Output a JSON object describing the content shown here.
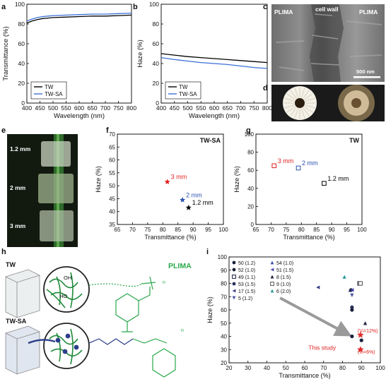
{
  "colors": {
    "tw": "#000000",
    "twsa": "#3a6fd8",
    "red": "#e02020",
    "blue": "#2a4fb0",
    "plima": "#2aa84a",
    "study_star": "#e03030"
  },
  "chart_data": [
    {
      "panel": "a",
      "type": "line",
      "xlabel": "Wavelength (nm)",
      "ylabel": "Transmittance (%)",
      "xlim": [
        400,
        800
      ],
      "ylim": [
        0,
        100
      ],
      "xticks": [
        "400",
        "450",
        "500",
        "550",
        "600",
        "650",
        "700",
        "750",
        "800"
      ],
      "yticks": [
        "0",
        "20",
        "40",
        "60",
        "80",
        "100"
      ],
      "legend": [
        "TW",
        "TW-SA"
      ],
      "legend_position": "bottom-left",
      "series": [
        {
          "name": "TW",
          "x": [
            400,
            420,
            440,
            460,
            480,
            500,
            550,
            600,
            650,
            700,
            750,
            800
          ],
          "y": [
            81,
            83,
            84.5,
            85.5,
            86,
            86.5,
            87,
            87.5,
            88,
            88,
            88.5,
            89
          ]
        },
        {
          "name": "TW-SA",
          "x": [
            400,
            420,
            440,
            460,
            480,
            500,
            550,
            600,
            650,
            700,
            750,
            800
          ],
          "y": [
            83,
            85,
            86.5,
            87.5,
            88,
            88.5,
            89,
            89.5,
            90,
            90,
            90.5,
            91
          ]
        }
      ]
    },
    {
      "panel": "b",
      "type": "line",
      "xlabel": "Wavelength (nm)",
      "ylabel": "Haze (%)",
      "xlim": [
        400,
        800
      ],
      "ylim": [
        0,
        100
      ],
      "xticks": [
        "400",
        "450",
        "500",
        "550",
        "600",
        "650",
        "700",
        "750",
        "800"
      ],
      "yticks": [
        "0",
        "20",
        "40",
        "60",
        "80",
        "100"
      ],
      "legend": [
        "TW",
        "TW-SA"
      ],
      "legend_position": "bottom-left",
      "series": [
        {
          "name": "TW",
          "x": [
            400,
            450,
            500,
            550,
            600,
            650,
            700,
            750,
            800
          ],
          "y": [
            50,
            48.5,
            47,
            46,
            45,
            44,
            43,
            42,
            41
          ]
        },
        {
          "name": "TW-SA",
          "x": [
            400,
            450,
            500,
            550,
            600,
            650,
            700,
            750,
            800
          ],
          "y": [
            46,
            44,
            42.5,
            41,
            40,
            39,
            37.5,
            36,
            35
          ]
        }
      ]
    },
    {
      "panel": "f",
      "type": "scatter",
      "title": "TW-SA",
      "xlabel": "Transmittance (%)",
      "ylabel": "Haze (%)",
      "xlim": [
        65,
        100
      ],
      "ylim": [
        35,
        70
      ],
      "xticks": [
        "65",
        "70",
        "75",
        "80",
        "85",
        "90",
        "95",
        "100"
      ],
      "yticks": [
        "35",
        "40",
        "45",
        "50",
        "55",
        "60",
        "65",
        "70"
      ],
      "points": [
        {
          "label": "3 mm",
          "x": 81.5,
          "y": 51.5,
          "color": "#e02020"
        },
        {
          "label": "2 mm",
          "x": 86.5,
          "y": 44.5,
          "color": "#2a4fb0"
        },
        {
          "label": "1.2 mm",
          "x": 88.5,
          "y": 41.5,
          "color": "#000000"
        }
      ]
    },
    {
      "panel": "g",
      "type": "scatter",
      "title": "TW",
      "xlabel": "Transmittance (%)",
      "ylabel": "Haze (%)",
      "xlim": [
        65,
        100
      ],
      "ylim": [
        0,
        100
      ],
      "xticks": [
        "65",
        "70",
        "75",
        "80",
        "85",
        "90",
        "95",
        "100"
      ],
      "yticks": [
        "0",
        "20",
        "40",
        "60",
        "80",
        "100"
      ],
      "points": [
        {
          "label": "3 mm",
          "x": 71,
          "y": 65,
          "color": "#e02020"
        },
        {
          "label": "2 mm",
          "x": 79,
          "y": 62.5,
          "color": "#2a4fb0"
        },
        {
          "label": "1.2 mm",
          "x": 87.5,
          "y": 45.5,
          "color": "#000000"
        }
      ]
    },
    {
      "panel": "i",
      "type": "scatter",
      "xlabel": "Transmittance (%)",
      "ylabel": "Haze (%)",
      "xlim": [
        20,
        100
      ],
      "ylim": [
        20,
        100
      ],
      "xticks": [
        "20",
        "30",
        "40",
        "50",
        "60",
        "70",
        "80",
        "90",
        "100"
      ],
      "yticks": [
        "20",
        "30",
        "40",
        "50",
        "60",
        "70",
        "80",
        "90",
        "100"
      ],
      "legend": [
        "50 (1.2)",
        "52 (1.0)",
        "49 (1.1)",
        "53 (1.5)",
        "17 (1.5)",
        "5 (1.2)",
        "54 (1.0)",
        "51 (1.5)",
        "8 (1.5)",
        "9 (1.0)",
        "6 (2.0)"
      ],
      "points": [
        {
          "ref": "17 (1.5)",
          "x": 67,
          "y": 77
        },
        {
          "ref": "6 (2.0)",
          "x": 81,
          "y": 85
        },
        {
          "ref": "54 (1.0)",
          "x": 84,
          "y": 75
        },
        {
          "ref": "52 (1.0)",
          "x": 84.5,
          "y": 75
        },
        {
          "ref": "51 (1.5)",
          "x": 85,
          "y": 75
        },
        {
          "ref": "49 (1.1)",
          "x": 89,
          "y": 80
        },
        {
          "ref": "9 (1.0)",
          "x": 89.5,
          "y": 80
        },
        {
          "ref": "5 (1.2)",
          "x": 85,
          "y": 71
        },
        {
          "ref": "53 (1.5)",
          "x": 85,
          "y": 62
        },
        {
          "ref": "50 (1.2)",
          "x": 85,
          "y": 60
        },
        {
          "ref": "8 (1.5)",
          "x": 92,
          "y": 50
        },
        {
          "ref": "50 (1.2)",
          "x": 85,
          "y": 40
        },
        {
          "ref": "52 (1.0)",
          "x": 90,
          "y": 37
        },
        {
          "ref": "This study (Vf=12%)",
          "x": 89.5,
          "y": 41
        },
        {
          "ref": "This study (Vf=6%)",
          "x": 89.5,
          "y": 30
        }
      ],
      "annotations": [
        "(Vₗ=12%)",
        "(Vₗ=6%)",
        "This study"
      ]
    }
  ],
  "labels": {
    "a": "a",
    "b": "b",
    "c": "c",
    "d": "d",
    "e": "e",
    "f": "f",
    "g": "g",
    "h": "h",
    "i": "i",
    "sem_plima_left": "PLIMA",
    "sem_cellwall": "cell wall",
    "sem_plima_right": "PLIMA",
    "scalebar": "500 nm",
    "e_12": "1.2 mm",
    "e_2": "2 mm",
    "e_3": "3 mm",
    "h_tw": "TW",
    "h_twsa": "TW-SA",
    "h_plima": "PLIMA",
    "h_oh": "OH",
    "h_ho": "HO",
    "h_n1": "n",
    "h_n2": "n",
    "i_vf12": "(Vₗ=12%)",
    "i_vf6": "(Vₗ=6%)",
    "i_study": "This study"
  }
}
